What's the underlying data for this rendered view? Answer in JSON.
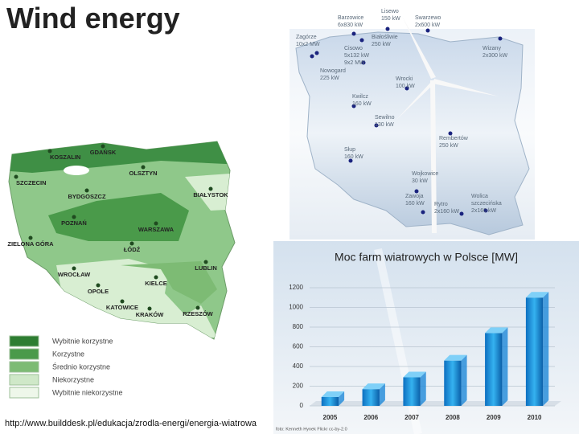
{
  "title": "Wind energy",
  "url": "http://www.builddesk.pl/edukacja/zrodla-energi/energia-wiatrowa",
  "zone_map": {
    "legend": [
      "Wybitnie korzystne",
      "Korzystne",
      "Średnio korzystne",
      "Niekorzystne",
      "Wybitnie niekorzystne"
    ],
    "cities": [
      "KOSZALIN",
      "GDAŃSK",
      "SZCZECIN",
      "OLSZTYN",
      "BYDGOSZCZ",
      "BIAŁYSTOK",
      "POZNAŃ",
      "WARSZAWA",
      "ZIELONA GÓRA",
      "ŁÓDŹ",
      "WROCŁAW",
      "LUBLIN",
      "OPOLE",
      "KIELCE",
      "KATOWICE",
      "KRAKÓW",
      "RZESZÓW"
    ]
  },
  "site_map": {
    "sites": [
      [
        "Lisewo",
        "150 kW"
      ],
      [
        "Swarzewo",
        "2x600 kW"
      ],
      [
        "Barzowice",
        "6x830 kW"
      ],
      [
        "Zagórze",
        "10x2 MW"
      ],
      [
        "Białośliwie",
        "250 kW"
      ],
      [
        "Cisowo",
        "5x132 kW",
        "9x2 MW"
      ],
      [
        "Wizany",
        "2x300 kW"
      ],
      [
        "Nowogard",
        "225 kW"
      ],
      [
        "Wrocki",
        "100 kW"
      ],
      [
        "Kwilcz",
        "160 kW"
      ],
      [
        "Sewilno",
        "130 kW"
      ],
      [
        "Słup",
        "160 kW"
      ],
      [
        "Rembertów",
        "250 kW"
      ],
      [
        "Wojkowice",
        "30 kW"
      ],
      [
        "Zawoja",
        "160 kW"
      ],
      [
        "Rytro",
        "2x160 kW"
      ],
      [
        "Wolica",
        "szczecińska",
        "2x160 kW"
      ]
    ]
  },
  "chart_data": {
    "type": "bar",
    "title": "Moc farm wiatrowych w Polsce [MW]",
    "categories": [
      "2005",
      "2006",
      "2007",
      "2008",
      "2009",
      "2010"
    ],
    "values": [
      90,
      170,
      290,
      460,
      740,
      1100
    ],
    "color": "#1e88d8",
    "ylim": [
      0,
      1200
    ],
    "yticks": [
      0,
      200,
      400,
      600,
      800,
      1000,
      1200
    ],
    "grid": true,
    "credit": "foto: Kenneth Hynek Flickr cc-by-2.0"
  }
}
